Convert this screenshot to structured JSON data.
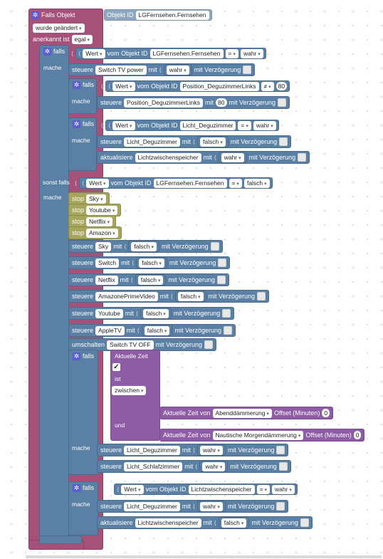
{
  "event": {
    "title": "Falls Objekt",
    "id_label": "Objekt ID",
    "id_value": "LGFernsehen.Fernsehen",
    "trigger": "wurde geändert",
    "ack_label": "anerkannt ist",
    "ack_value": "egal"
  },
  "words": {
    "falls": "falls",
    "mache": "mache",
    "sonst_falls": "sonst falls",
    "wert": "Wert",
    "vom_objekt_id": "vom Objekt ID",
    "steuere": "steuere",
    "mit": "mit",
    "mit_verzoegerung": "mit Verzögerung",
    "aktualisiere": "aktualisiere",
    "stop": "stop",
    "umschalten": "umschalten",
    "ist": "ist",
    "und": "und"
  },
  "if1": {
    "cond_obj": "LGFernsehen.Fernsehen",
    "op": "=",
    "val": "wahr",
    "do1": {
      "obj": "Switch TV power",
      "val": "wahr"
    },
    "nested_a": {
      "cond_obj": "Position_DeguzimmerLinks",
      "op": "≠",
      "val": "80",
      "do_obj": "Position_DeguzimmerLinks",
      "do_val": "80"
    },
    "nested_b": {
      "cond_obj": "Licht_Deguzimmer",
      "op": "=",
      "val": "wahr",
      "do_obj": "Licht_Deguzimmer",
      "do_val": "falsch",
      "upd_obj": "Lichtzwischenspeicher",
      "upd_val": "wahr"
    }
  },
  "elseif": {
    "cond_obj": "LGFernsehen.Fernsehen",
    "op": "=",
    "val": "falsch",
    "stops": [
      "Sky",
      "Youtube",
      "Netflix",
      "Amazon"
    ],
    "controls": [
      {
        "obj": "Sky",
        "val": "falsch"
      },
      {
        "obj": "Switch",
        "val": "falsch"
      },
      {
        "obj": "Netflix",
        "val": "falsch"
      },
      {
        "obj": "AmazonePrimeVideo",
        "val": "falsch"
      },
      {
        "obj": "Youtube",
        "val": "falsch"
      },
      {
        "obj": "AppleTV",
        "val": "falsch"
      }
    ],
    "toggle_obj": "Switch TV OFF",
    "time_if": {
      "time_label": "Aktuelle Zeit",
      "check": "✓",
      "range": "zwischen",
      "t1_label": "Aktuelle Zeit von",
      "t1_val": "Abenddämmerung",
      "t1_offset_label": "Offset (Minuten)",
      "t1_offset": "0",
      "t2_label": "Aktuelle Zeit von",
      "t2_val": "Nautische Morgendämmerung",
      "t2_offset_label": "Offset (Minuten)",
      "t2_offset": "0",
      "do1": {
        "obj": "Licht_Deguzimmer",
        "val": "wahr"
      },
      "do2": {
        "obj": "Licht_Schlafzimmer",
        "val": "wahr"
      }
    },
    "last_if": {
      "cond_obj": "Lichtzwischenspeicher",
      "op": "=",
      "val": "wahr",
      "do_obj": "Licht_Deguzimmer",
      "do_val": "wahr",
      "upd_obj": "Lichtzwischenspeicher",
      "upd_val": "falsch"
    }
  },
  "colors": {
    "event": "#a5517a",
    "control": "#5b80a5",
    "trigger": "#a5a55b",
    "time": "#8e5ba5"
  }
}
